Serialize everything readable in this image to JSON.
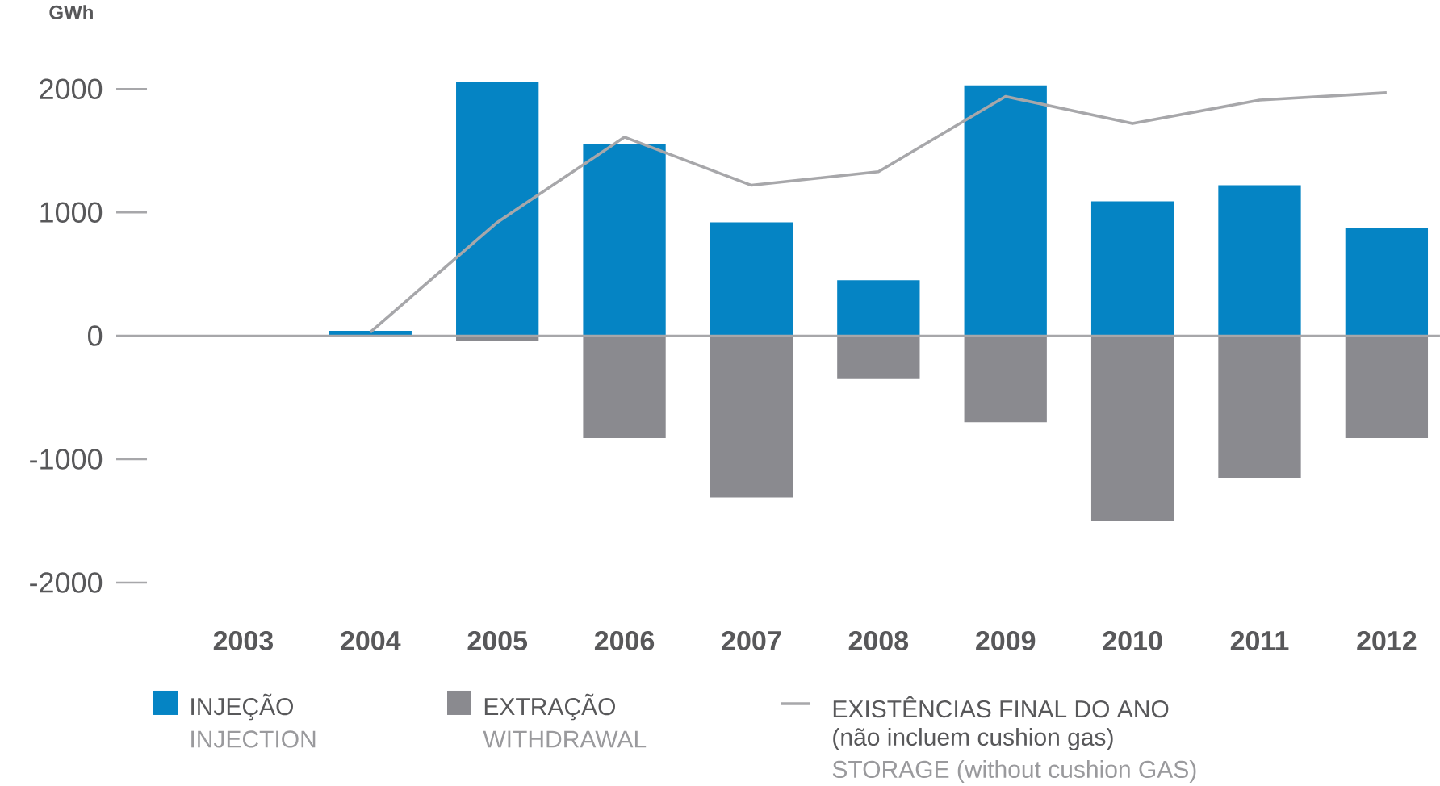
{
  "chart_data": {
    "type": "bar",
    "ylabel": "GWh",
    "categories": [
      "2003",
      "2004",
      "2005",
      "2006",
      "2007",
      "2008",
      "2009",
      "2010",
      "2011",
      "2012"
    ],
    "series": [
      {
        "name": "INJEÇÃO",
        "color": "#0584c4",
        "values": [
          0,
          40,
          2060,
          1550,
          920,
          450,
          2030,
          1090,
          1220,
          870
        ]
      },
      {
        "name": "EXTRAÇÃO",
        "color": "#8a8a8f",
        "values": [
          0,
          0,
          -40,
          -830,
          -1310,
          -350,
          -700,
          -1500,
          -1150,
          -830
        ]
      },
      {
        "name": "EXISTÊNCIAS FINAL DO ANO",
        "type": "line",
        "color": "#a7a7aa",
        "values": [
          null,
          30,
          920,
          1610,
          1220,
          1330,
          1940,
          1720,
          1910,
          1970
        ]
      }
    ],
    "stacked": true,
    "legend": "bottom",
    "ylim": [
      -2000,
      2100
    ],
    "yticks": [
      -2000,
      -1000,
      0,
      1000,
      2000
    ],
    "annotations": [
      "INJECTION",
      "WITHDRAWAL",
      "(não incluem cushion gas)",
      "STORAGE (without cushion GAS)"
    ]
  }
}
